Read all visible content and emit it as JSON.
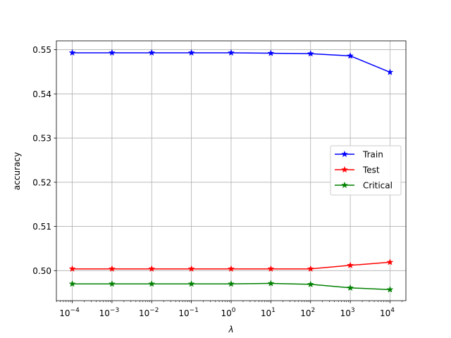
{
  "chart_data": {
    "type": "line",
    "title": "",
    "xlabel": "λ",
    "ylabel": "accuracy",
    "xscale": "log",
    "x": [
      0.0001,
      0.001,
      0.01,
      0.1,
      1,
      10,
      100,
      1000,
      10000
    ],
    "x_tick_labels": [
      {
        "base": "10",
        "exp": "−4"
      },
      {
        "base": "10",
        "exp": "−3"
      },
      {
        "base": "10",
        "exp": "−2"
      },
      {
        "base": "10",
        "exp": "−1"
      },
      {
        "base": "10",
        "exp": "0"
      },
      {
        "base": "10",
        "exp": "1"
      },
      {
        "base": "10",
        "exp": "2"
      },
      {
        "base": "10",
        "exp": "3"
      },
      {
        "base": "10",
        "exp": "4"
      }
    ],
    "ylim": [
      0.4932,
      0.552
    ],
    "y_ticks": [
      0.5,
      0.51,
      0.52,
      0.53,
      0.54,
      0.55
    ],
    "y_tick_labels": [
      "0.50",
      "0.51",
      "0.52",
      "0.53",
      "0.54",
      "0.55"
    ],
    "grid": true,
    "legend_position": "center-right",
    "series": [
      {
        "name": "Train",
        "color": "#0000ff",
        "marker": "star",
        "values": [
          0.5493,
          0.5493,
          0.5493,
          0.5493,
          0.5493,
          0.5492,
          0.5491,
          0.5486,
          0.5449
        ]
      },
      {
        "name": "Test",
        "color": "#ff0000",
        "marker": "star",
        "values": [
          0.5004,
          0.5004,
          0.5004,
          0.5004,
          0.5004,
          0.5004,
          0.5004,
          0.5012,
          0.5019
        ]
      },
      {
        "name": "Critical",
        "color": "#008000",
        "marker": "star",
        "values": [
          0.497,
          0.497,
          0.497,
          0.497,
          0.497,
          0.4971,
          0.4969,
          0.4961,
          0.4957
        ]
      }
    ]
  }
}
